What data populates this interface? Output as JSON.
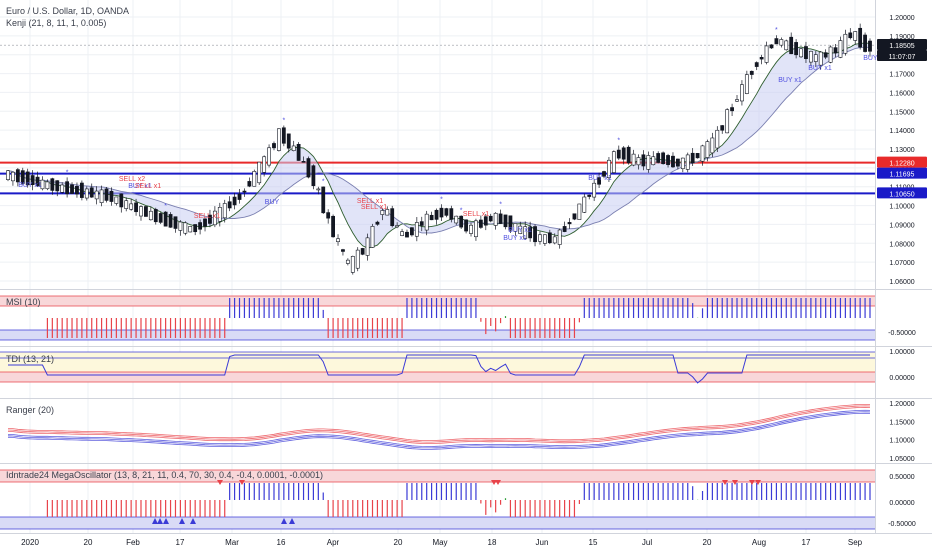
{
  "header": {
    "title": "Euro / U.S. Dollar, 1D, OANDA",
    "indicator": "Kenji (21, 8, 11, 1, 0.005)"
  },
  "panes": {
    "msi": "MSI (10)",
    "tdi": "TDI (13, 21)",
    "ranger": "Ranger (20)",
    "mega": "Idntrade24 MegaOscillator (13, 8, 21, 11, 0.4, 70, 30, 0.4, -0.4, 0.0001, -0.0001)"
  },
  "price_axis": {
    "ticks": [
      "1.20000",
      "1.19000",
      "1.18000",
      "1.17000",
      "1.16000",
      "1.15000",
      "1.14000",
      "1.13000",
      "1.12000",
      "1.11000",
      "1.10000",
      "1.09000",
      "1.08000",
      "1.07000",
      "1.06000"
    ],
    "tags": [
      {
        "label": "1.18505",
        "color": "#131722"
      },
      {
        "label": "11:07:07",
        "color": "#131722"
      },
      {
        "label": "1.12280",
        "color": "#e82a2a"
      },
      {
        "label": "1.11695",
        "color": "#1a1ac8"
      },
      {
        "label": "1.10650",
        "color": "#1a1ac8"
      }
    ]
  },
  "msi_axis": {
    "ticks": [
      "-0.50000"
    ]
  },
  "tdi_axis": {
    "ticks": [
      "1.00000",
      "0.00000"
    ]
  },
  "ranger_axis": {
    "ticks": [
      "1.20000",
      "1.15000",
      "1.10000",
      "1.05000"
    ]
  },
  "mega_axis": {
    "ticks": [
      "0.50000",
      "0.00000",
      "-0.50000"
    ]
  },
  "time_axis": {
    "ticks": [
      "2020",
      "20",
      "Feb",
      "17",
      "Mar",
      "16",
      "Apr",
      "20",
      "May",
      "18",
      "Jun",
      "15",
      "Jul",
      "20",
      "Aug",
      "17",
      "Sep"
    ]
  },
  "signals": {
    "buy": [
      "BUY x1",
      "BUY x1",
      "BUY",
      "BUY x1",
      "BUY x1",
      "BUY x1",
      "BUY x1",
      "BUY x1",
      "BUY x1"
    ],
    "sell": [
      "SELL x2",
      "SELL x1",
      "SELL x1",
      "SELL x1",
      "SELL x1",
      "SELL x1"
    ]
  },
  "colors": {
    "up": "#ffffff",
    "down": "#131722",
    "resistance": "#e82a2a",
    "support": "#1a1ac8",
    "msi_pos": "#3b3bd6",
    "msi_neg": "#e8434a",
    "msi_neu": "#2e9e3a",
    "tdi_line": "#3b3bd6",
    "ranger_upper": "#e8434a",
    "ranger_lower": "#3b3bd6"
  },
  "chart_data": {
    "type": "candlestick",
    "title": "Euro / U.S. Dollar, 1D, OANDA",
    "ylim": [
      1.058,
      1.203
    ],
    "levels": [
      {
        "value": 1.1228,
        "label": "1.12280",
        "color": "resistance"
      },
      {
        "value": 1.11695,
        "label": "1.11695",
        "color": "support"
      },
      {
        "value": 1.1065,
        "label": "1.10650",
        "color": "support"
      }
    ],
    "last_price": 1.18505,
    "close_path": [
      [
        0,
        1.117
      ],
      [
        10,
        1.112
      ],
      [
        20,
        1.108
      ],
      [
        30,
        1.105
      ],
      [
        45,
        1.093
      ],
      [
        55,
        1.087
      ],
      [
        60,
        1.093
      ],
      [
        68,
        1.104
      ],
      [
        75,
        1.122
      ],
      [
        80,
        1.138
      ],
      [
        85,
        1.128
      ],
      [
        90,
        1.113
      ],
      [
        95,
        1.088
      ],
      [
        100,
        1.068
      ],
      [
        105,
        1.078
      ],
      [
        110,
        1.099
      ],
      [
        116,
        1.083
      ],
      [
        122,
        1.092
      ],
      [
        128,
        1.097
      ],
      [
        135,
        1.087
      ],
      [
        142,
        1.094
      ],
      [
        150,
        1.087
      ],
      [
        155,
        1.083
      ],
      [
        160,
        1.082
      ],
      [
        166,
        1.096
      ],
      [
        172,
        1.112
      ],
      [
        178,
        1.128
      ],
      [
        185,
        1.123
      ],
      [
        190,
        1.125
      ],
      [
        195,
        1.122
      ],
      [
        200,
        1.125
      ],
      [
        206,
        1.134
      ],
      [
        212,
        1.155
      ],
      [
        218,
        1.175
      ],
      [
        224,
        1.188
      ],
      [
        230,
        1.182
      ],
      [
        236,
        1.178
      ],
      [
        242,
        1.183
      ],
      [
        246,
        1.192
      ],
      [
        250,
        1.184
      ]
    ]
  }
}
